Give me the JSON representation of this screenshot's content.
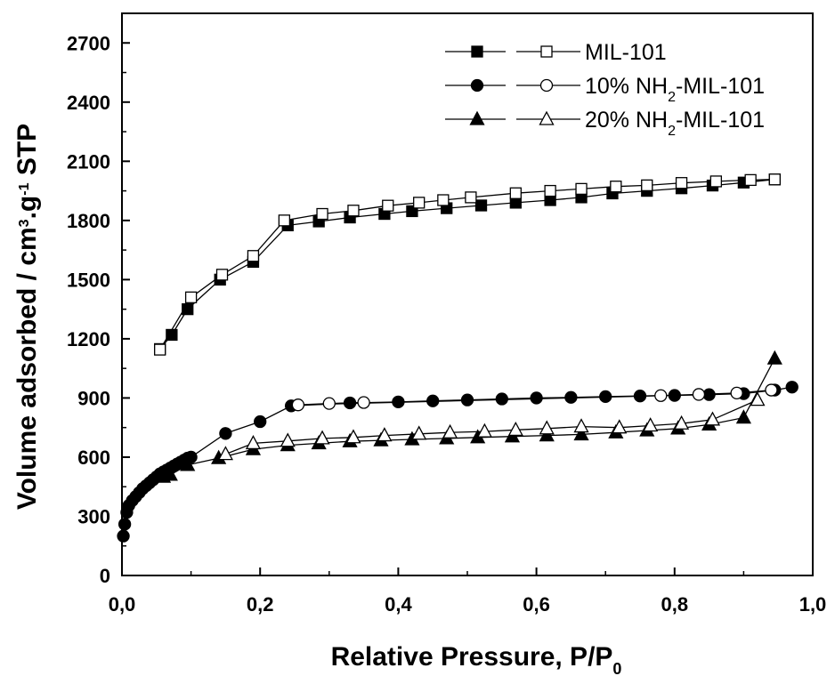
{
  "chart_data": {
    "type": "scatter",
    "title": "",
    "xlabel": "Relative Pressure, P/P",
    "xlabel_sub": "0",
    "ylabel": {
      "parts": [
        "Volume adsorbed / cm",
        "3",
        ".g",
        "-1",
        " STP"
      ]
    },
    "xlim": [
      0,
      1.0
    ],
    "ylim": [
      0,
      2850
    ],
    "x_ticks": [
      0,
      0.2,
      0.4,
      0.6,
      0.8,
      1.0
    ],
    "x_tick_labels": [
      "0,0",
      "0,2",
      "0,4",
      "0,6",
      "0,8",
      "1,0"
    ],
    "y_ticks": [
      0,
      300,
      600,
      900,
      1200,
      1500,
      1800,
      2100,
      2400,
      2700
    ],
    "y_tick_labels": [
      "0",
      "300",
      "600",
      "900",
      "1200",
      "1500",
      "1800",
      "2100",
      "2400",
      "2700"
    ],
    "grid": false,
    "legend_position": "top-right",
    "legend": [
      {
        "id": "mil101",
        "parts": [
          "MIL-101"
        ],
        "marker": "square"
      },
      {
        "id": "nh2-10",
        "parts": [
          "10% NH",
          "2",
          "-MIL-101"
        ],
        "marker": "circle"
      },
      {
        "id": "nh2-20",
        "parts": [
          "20% NH",
          "2",
          "-MIL-101"
        ],
        "marker": "triangle"
      }
    ],
    "series": [
      {
        "id": "mil101-ads",
        "group": "mil101",
        "marker": "square",
        "fill": "filled",
        "x": [
          0.055,
          0.072,
          0.095,
          0.142,
          0.19,
          0.24,
          0.285,
          0.33,
          0.38,
          0.42,
          0.47,
          0.52,
          0.57,
          0.62,
          0.665,
          0.71,
          0.76,
          0.81,
          0.855,
          0.9,
          0.945
        ],
        "y": [
          1148,
          1220,
          1350,
          1500,
          1590,
          1775,
          1795,
          1815,
          1833,
          1847,
          1862,
          1876,
          1890,
          1903,
          1917,
          1937,
          1950,
          1963,
          1977,
          1992,
          2008
        ]
      },
      {
        "id": "mil101-des",
        "group": "mil101",
        "marker": "square",
        "fill": "open",
        "x": [
          0.945,
          0.91,
          0.86,
          0.81,
          0.76,
          0.715,
          0.665,
          0.62,
          0.57,
          0.505,
          0.465,
          0.43,
          0.385,
          0.335,
          0.29,
          0.235,
          0.19,
          0.145,
          0.1,
          0.055
        ],
        "y": [
          2008,
          2005,
          1998,
          1990,
          1978,
          1972,
          1960,
          1950,
          1938,
          1917,
          1903,
          1890,
          1875,
          1850,
          1833,
          1800,
          1620,
          1525,
          1410,
          1145
        ]
      },
      {
        "id": "nh2-10-ads",
        "group": "nh2-10",
        "marker": "circle",
        "fill": "filled",
        "x": [
          0.002,
          0.004,
          0.007,
          0.01,
          0.015,
          0.02,
          0.025,
          0.03,
          0.035,
          0.04,
          0.045,
          0.05,
          0.055,
          0.06,
          0.065,
          0.07,
          0.075,
          0.08,
          0.085,
          0.09,
          0.095,
          0.1,
          0.15,
          0.2,
          0.245,
          0.33,
          0.4,
          0.45,
          0.5,
          0.55,
          0.6,
          0.65,
          0.7,
          0.75,
          0.8,
          0.85,
          0.9,
          0.945,
          0.97
        ],
        "y": [
          200,
          260,
          320,
          355,
          380,
          400,
          420,
          440,
          455,
          470,
          485,
          500,
          515,
          525,
          535,
          545,
          555,
          565,
          575,
          585,
          595,
          600,
          720,
          780,
          860,
          875,
          880,
          885,
          890,
          895,
          900,
          903,
          907,
          910,
          913,
          917,
          922,
          940,
          955
        ]
      },
      {
        "id": "nh2-10-des",
        "group": "nh2-10",
        "marker": "circle",
        "fill": "open",
        "x": [
          0.94,
          0.89,
          0.835,
          0.78,
          0.255,
          0.3,
          0.35
        ],
        "y": [
          940,
          925,
          918,
          912,
          865,
          872,
          877
        ]
      },
      {
        "id": "nh2-20-ads",
        "group": "nh2-20",
        "marker": "triangle",
        "fill": "filled",
        "x": [
          0.06,
          0.07,
          0.095,
          0.14,
          0.19,
          0.24,
          0.285,
          0.33,
          0.375,
          0.42,
          0.47,
          0.515,
          0.565,
          0.615,
          0.665,
          0.715,
          0.76,
          0.805,
          0.85,
          0.9,
          0.945
        ],
        "y": [
          500,
          510,
          560,
          595,
          640,
          660,
          670,
          680,
          685,
          690,
          695,
          700,
          705,
          710,
          715,
          725,
          735,
          745,
          765,
          800,
          1100
        ]
      },
      {
        "id": "nh2-20-des",
        "group": "nh2-20",
        "marker": "triangle",
        "fill": "open",
        "x": [
          0.92,
          0.855,
          0.81,
          0.765,
          0.72,
          0.665,
          0.615,
          0.57,
          0.525,
          0.475,
          0.43,
          0.38,
          0.335,
          0.29,
          0.24,
          0.19,
          0.15
        ],
        "y": [
          890,
          790,
          770,
          760,
          750,
          755,
          745,
          738,
          730,
          725,
          718,
          710,
          700,
          695,
          682,
          670,
          615
        ]
      }
    ]
  }
}
